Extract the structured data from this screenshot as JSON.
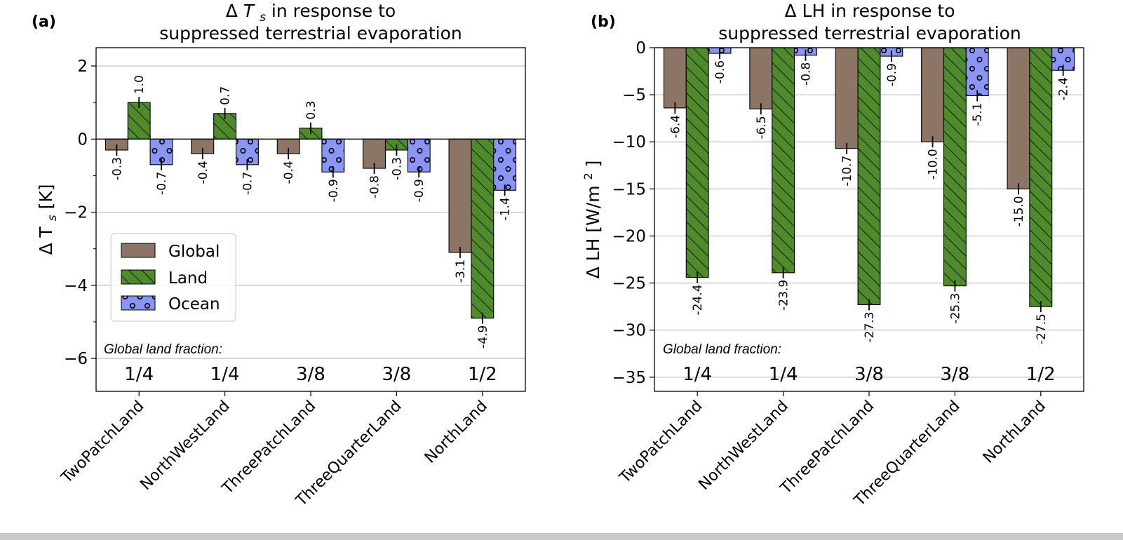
{
  "chart_data": [
    {
      "type": "bar",
      "panel_label": "(a)",
      "title": "Δ T_s in response to suppressed terrestrial evaporation",
      "title_lines": [
        "in response to",
        "suppressed terrestrial evaporation"
      ],
      "title_symbol": "Δ",
      "title_var": "T",
      "title_sub": "s",
      "ylabel": "Δ T_s [K]",
      "ylabel_main": "Δ T",
      "ylabel_sub": "s",
      "ylabel_unit": "[K]",
      "ylim": [
        -6.9,
        2.5
      ],
      "yticks": [
        2,
        0,
        -2,
        -4,
        -6
      ],
      "ytick_labels": [
        "2",
        "0",
        "−2",
        "−4",
        "−6"
      ],
      "categories": [
        "TwoPatchLand",
        "NorthWestLand",
        "ThreePatchLand",
        "ThreeQuarterLand",
        "NorthLand"
      ],
      "series": [
        {
          "name": "Global",
          "values": [
            -0.3,
            -0.4,
            -0.4,
            -0.8,
            -3.1
          ],
          "labels": [
            "-0.3",
            "-0.4",
            "-0.4",
            "-0.8",
            "-3.1"
          ]
        },
        {
          "name": "Land",
          "values": [
            1.0,
            0.7,
            0.3,
            -0.3,
            -4.9
          ],
          "labels": [
            "1.0",
            "0.7",
            "0.3",
            "-0.3",
            "-4.9"
          ]
        },
        {
          "name": "Ocean",
          "values": [
            -0.7,
            -0.7,
            -0.9,
            -0.9,
            -1.4
          ],
          "labels": [
            "-0.7",
            "-0.7",
            "-0.9",
            "-0.9",
            "-1.4"
          ]
        }
      ],
      "land_fraction_heading": "Global land fraction:",
      "land_fractions": [
        "1/4",
        "1/4",
        "3/8",
        "3/8",
        "1/2"
      ],
      "legend": [
        "Global",
        "Land",
        "Ocean"
      ],
      "legend_position": "lower-left",
      "grid": "horizontal"
    },
    {
      "type": "bar",
      "panel_label": "(b)",
      "title": "Δ LH in response to suppressed terrestrial evaporation",
      "title_lines": [
        "Δ LH in response to",
        "suppressed terrestrial evaporation"
      ],
      "ylabel": "Δ LH [W/m2]",
      "ylabel_main": "Δ LH [W/m",
      "ylabel_sup": "2",
      "ylabel_end": "]",
      "ylim": [
        -36.5,
        0
      ],
      "yticks": [
        0,
        -5,
        -10,
        -15,
        -20,
        -25,
        -30,
        -35
      ],
      "ytick_labels": [
        "0",
        "−5",
        "−10",
        "−15",
        "−20",
        "−25",
        "−30",
        "−35"
      ],
      "categories": [
        "TwoPatchLand",
        "NorthWestLand",
        "ThreePatchLand",
        "ThreeQuarterLand",
        "NorthLand"
      ],
      "series": [
        {
          "name": "Global",
          "values": [
            -6.4,
            -6.5,
            -10.7,
            -10.0,
            -15.0
          ],
          "labels": [
            "-6.4",
            "-6.5",
            "-10.7",
            "-10.0",
            "-15.0"
          ]
        },
        {
          "name": "Land",
          "values": [
            -24.4,
            -23.9,
            -27.3,
            -25.3,
            -27.5
          ],
          "labels": [
            "-24.4",
            "-23.9",
            "-27.3",
            "-25.3",
            "-27.5"
          ]
        },
        {
          "name": "Ocean",
          "values": [
            -0.6,
            -0.8,
            -0.9,
            -5.1,
            -2.4
          ],
          "labels": [
            "-0.6",
            "-0.8",
            "-0.9",
            "-5.1",
            "-2.4"
          ]
        }
      ],
      "land_fraction_heading": "Global land fraction:",
      "land_fractions": [
        "1/4",
        "1/4",
        "3/8",
        "3/8",
        "1/2"
      ],
      "grid": "horizontal"
    }
  ],
  "colors": {
    "global": "#8d7565",
    "land": "#4f8a2b",
    "ocean": "#8a95f5",
    "grid": "#c4c4c4",
    "background": "#ffffff"
  }
}
